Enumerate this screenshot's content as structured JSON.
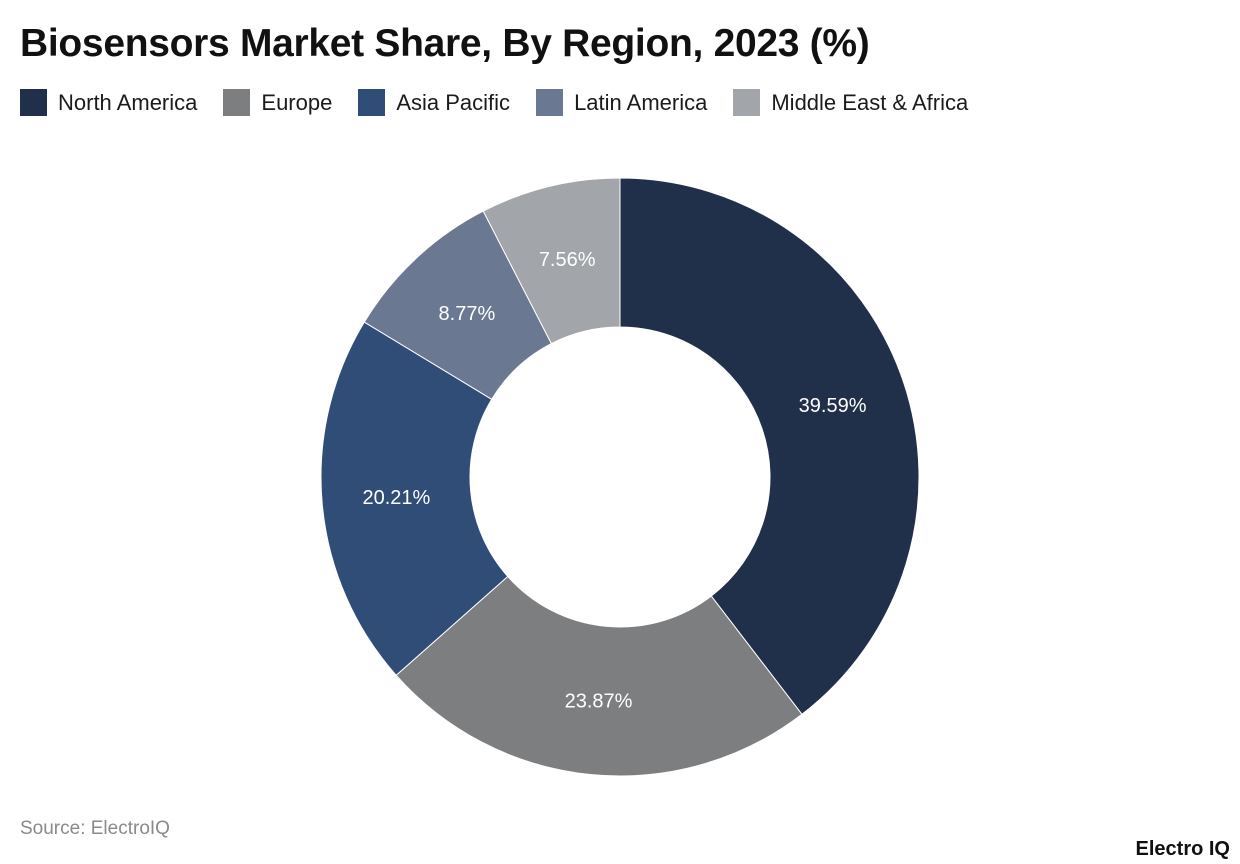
{
  "header": {
    "title": "Biosensors Market Share, By Region, 2023 (%)"
  },
  "legend": [
    {
      "label": "North America",
      "color": "#21304a"
    },
    {
      "label": "Europe",
      "color": "#7d7e80"
    },
    {
      "label": "Asia Pacific",
      "color": "#304d78"
    },
    {
      "label": "Latin America",
      "color": "#6b7891"
    },
    {
      "label": "Middle East & Africa",
      "color": "#a2a5aa"
    }
  ],
  "footer": {
    "source": "Source: ElectroIQ",
    "brand": "Electro IQ"
  },
  "chart_data": {
    "type": "pie",
    "variant": "donut",
    "title": "Biosensors Market Share, By Region, 2023 (%)",
    "categories": [
      "North America",
      "Europe",
      "Asia Pacific",
      "Latin America",
      "Middle East & Africa"
    ],
    "values": [
      39.59,
      23.87,
      20.21,
      8.77,
      7.56
    ],
    "labels": [
      "39.59%",
      "23.87%",
      "20.21%",
      "8.77%",
      "7.56%"
    ],
    "colors": [
      "#21304a",
      "#7d7e80",
      "#304d78",
      "#6b7891",
      "#a2a5aa"
    ],
    "legend_position": "top",
    "start_angle": "12 o'clock, clockwise"
  }
}
